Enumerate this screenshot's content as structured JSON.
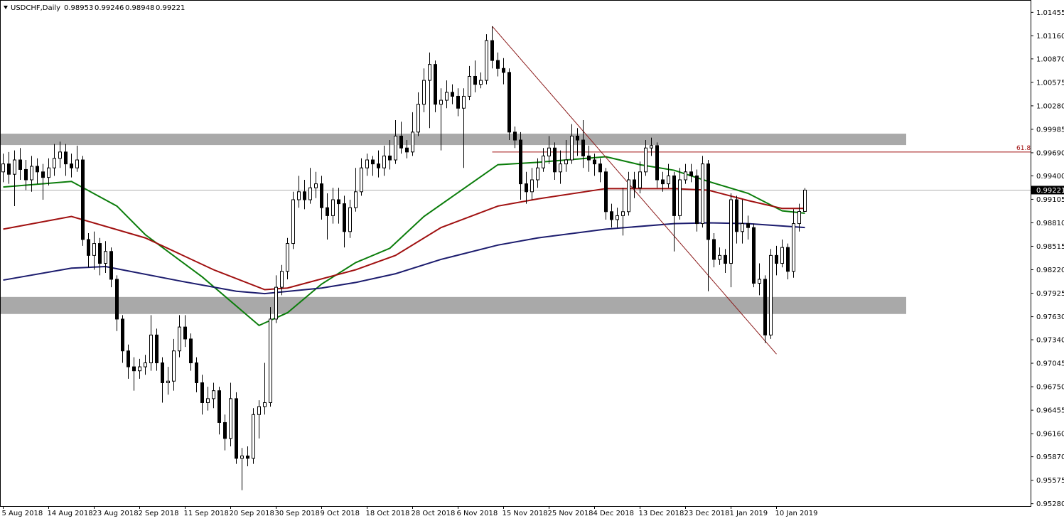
{
  "chart_data": {
    "type": "candlestick",
    "symbol": "USDCHF,Daily",
    "categories": [
      "5 Aug 2018",
      null,
      null,
      null,
      null,
      null,
      null,
      null,
      "14 Aug 2018",
      null,
      null,
      null,
      null,
      null,
      null,
      null,
      "23 Aug 2018",
      null,
      null,
      null,
      null,
      null,
      null,
      null,
      "2 Sep 2018",
      null,
      null,
      null,
      null,
      null,
      null,
      null,
      "11 Sep 2018",
      null,
      null,
      null,
      null,
      null,
      null,
      null,
      "20 Sep 2018",
      null,
      null,
      null,
      null,
      null,
      null,
      null,
      "30 Sep 2018",
      null,
      null,
      null,
      null,
      null,
      null,
      null,
      "9 Oct 2018",
      null,
      null,
      null,
      null,
      null,
      null,
      null,
      "18 Oct 2018",
      null,
      null,
      null,
      null,
      null,
      null,
      null,
      "28 Oct 2018",
      null,
      null,
      null,
      null,
      null,
      null,
      null,
      "6 Nov 2018",
      null,
      null,
      null,
      null,
      null,
      null,
      null,
      "15 Nov 2018",
      null,
      null,
      null,
      null,
      null,
      null,
      null,
      "25 Nov 2018",
      null,
      null,
      null,
      null,
      null,
      null,
      null,
      "4 Dec 2018",
      null,
      null,
      null,
      null,
      null,
      null,
      null,
      "13 Dec 2018",
      null,
      null,
      null,
      null,
      null,
      null,
      null,
      "23 Dec 2018",
      null,
      null,
      null,
      null,
      null,
      null,
      null,
      "1 Jan 2019",
      null,
      null,
      null,
      null,
      null,
      null,
      null,
      "10 Jan 2019",
      null,
      null,
      null,
      null,
      null
    ],
    "open": [
      0.9945,
      0.9955,
      0.9942,
      0.996,
      0.9948,
      0.9935,
      0.9952,
      0.9945,
      0.9938,
      0.995,
      0.9962,
      0.997,
      0.9955,
      0.995,
      0.996,
      0.986,
      0.984,
      0.9855,
      0.983,
      0.9845,
      0.981,
      0.976,
      0.972,
      0.97,
      0.9695,
      0.97,
      0.9705,
      0.974,
      0.9705,
      0.968,
      0.9682,
      0.972,
      0.975,
      0.9735,
      0.9705,
      0.968,
      0.9655,
      0.966,
      0.967,
      0.963,
      0.961,
      0.966,
      0.9585,
      0.9588,
      0.9585,
      0.964,
      0.965,
      0.9655,
      0.976,
      0.98,
      0.982,
      0.9855,
      0.991,
      0.992,
      0.991,
      0.9925,
      0.993,
      0.99,
      0.989,
      0.991,
      0.9905,
      0.987,
      0.99,
      0.992,
      0.995,
      0.996,
      0.9955,
      0.995,
      0.9965,
      0.996,
      0.999,
      0.9975,
      0.997,
      0.9995,
      1.003,
      1.006,
      1.008,
      1.003,
      1.0035,
      1.0045,
      1.004,
      1.0025,
      1.004,
      1.0065,
      1.0055,
      1.006,
      1.011,
      1.0085,
      1.0075,
      1.007,
      0.9995,
      0.9985,
      0.993,
      0.992,
      0.9935,
      0.995,
      0.9965,
      0.9975,
      0.9945,
      0.9955,
      0.996,
      0.999,
      0.9985,
      0.9965,
      0.996,
      0.9955,
      0.9945,
      0.9895,
      0.9885,
      0.989,
      0.9895,
      0.9935,
      0.9925,
      0.9945,
      0.9975,
      0.9978,
      0.9935,
      0.993,
      0.994,
      0.989,
      0.9935,
      0.9945,
      0.994,
      0.988,
      0.9955,
      0.986,
      0.9835,
      0.984,
      0.983,
      0.991,
      0.987,
      0.988,
      0.9875,
      0.9805,
      0.981,
      0.974,
      0.984,
      0.983,
      0.985,
      0.982,
      0.988,
      0.98953
    ],
    "high": [
      0.9968,
      0.997,
      0.9972,
      0.9975,
      0.996,
      0.9965,
      0.9962,
      0.9955,
      0.9962,
      0.998,
      0.9983,
      0.998,
      0.9968,
      0.9978,
      0.9965,
      0.9868,
      0.987,
      0.9862,
      0.9858,
      0.985,
      0.9815,
      0.9765,
      0.9728,
      0.9712,
      0.971,
      0.9715,
      0.9765,
      0.9748,
      0.9712,
      0.97,
      0.9735,
      0.9765,
      0.9765,
      0.9742,
      0.9712,
      0.969,
      0.9675,
      0.968,
      0.9675,
      0.964,
      0.968,
      0.9668,
      0.9598,
      0.96,
      0.9648,
      0.9658,
      0.9705,
      0.9775,
      0.9815,
      0.9828,
      0.9862,
      0.992,
      0.994,
      0.9935,
      0.995,
      0.9945,
      0.994,
      0.9918,
      0.9925,
      0.9925,
      0.9915,
      0.991,
      0.995,
      0.9962,
      0.9968,
      0.9965,
      0.9972,
      0.9978,
      0.9985,
      1.001,
      1.0008,
      0.9985,
      1.002,
      1.0045,
      1.0075,
      1.0095,
      1.0085,
      1.005,
      1.006,
      1.0055,
      1.005,
      1.005,
      1.0078,
      1.0085,
      1.007,
      1.0118,
      1.0128,
      1.0095,
      1.0088,
      1.0075,
      1.0002,
      0.9995,
      0.9945,
      0.995,
      0.9962,
      0.9975,
      0.999,
      0.9982,
      0.9972,
      0.9985,
      1.0005,
      1.0,
      1.001,
      0.9978,
      0.9968,
      0.9962,
      0.995,
      0.9905,
      0.99,
      0.9925,
      0.9945,
      0.9945,
      0.9958,
      0.9985,
      0.9988,
      0.9982,
      0.9945,
      0.9955,
      0.9945,
      0.995,
      0.9955,
      0.9955,
      0.9948,
      0.9965,
      0.996,
      0.9868,
      0.985,
      0.9848,
      0.9918,
      0.9915,
      0.991,
      0.989,
      0.988,
      0.983,
      0.9815,
      0.9848,
      0.9852,
      0.986,
      0.9855,
      0.9898,
      0.9905,
      0.99246
    ],
    "low": [
      0.9932,
      0.993,
      0.9902,
      0.9935,
      0.9922,
      0.992,
      0.993,
      0.991,
      0.9928,
      0.994,
      0.995,
      0.994,
      0.9938,
      0.9945,
      0.9852,
      0.9825,
      0.9822,
      0.9815,
      0.9818,
      0.98,
      0.9745,
      0.9705,
      0.9685,
      0.967,
      0.9685,
      0.969,
      0.9695,
      0.9695,
      0.9655,
      0.9665,
      0.967,
      0.9712,
      0.9725,
      0.9695,
      0.9668,
      0.964,
      0.9645,
      0.9648,
      0.9615,
      0.9595,
      0.96,
      0.9578,
      0.9545,
      0.9575,
      0.9578,
      0.961,
      0.964,
      0.965,
      0.9755,
      0.979,
      0.981,
      0.9848,
      0.99,
      0.9898,
      0.9905,
      0.9912,
      0.9885,
      0.986,
      0.988,
      0.988,
      0.985,
      0.9862,
      0.9895,
      0.9915,
      0.994,
      0.994,
      0.9938,
      0.994,
      0.9948,
      0.9955,
      0.9968,
      0.9962,
      0.9965,
      0.999,
      1.002,
      1.0,
      1.002,
      0.9972,
      1.0025,
      1.003,
      1.0015,
      0.995,
      1.0035,
      1.0045,
      1.005,
      1.0055,
      1.0075,
      1.0065,
      1.0055,
      0.9985,
      0.9975,
      0.991,
      0.9905,
      0.991,
      0.9925,
      0.9945,
      0.9955,
      0.9935,
      0.993,
      0.9945,
      0.9955,
      0.9965,
      0.995,
      0.9945,
      0.994,
      0.9932,
      0.9885,
      0.9875,
      0.9875,
      0.9865,
      0.989,
      0.9912,
      0.9918,
      0.994,
      0.9965,
      0.9925,
      0.992,
      0.9925,
      0.9845,
      0.9885,
      0.993,
      0.9932,
      0.987,
      0.9875,
      0.9795,
      0.9825,
      0.9828,
      0.9818,
      0.98,
      0.9855,
      0.9855,
      0.986,
      0.98,
      0.979,
      0.973,
      0.9735,
      0.9815,
      0.9825,
      0.981,
      0.9812,
      0.987,
      0.98948
    ],
    "close": [
      0.9955,
      0.9942,
      0.996,
      0.9948,
      0.9935,
      0.9952,
      0.9945,
      0.9938,
      0.995,
      0.9962,
      0.997,
      0.9955,
      0.995,
      0.996,
      0.986,
      0.984,
      0.9855,
      0.983,
      0.9845,
      0.981,
      0.976,
      0.972,
      0.97,
      0.9695,
      0.97,
      0.9705,
      0.974,
      0.9705,
      0.968,
      0.9682,
      0.972,
      0.975,
      0.9735,
      0.9705,
      0.968,
      0.9655,
      0.966,
      0.967,
      0.963,
      0.961,
      0.966,
      0.9585,
      0.9588,
      0.9585,
      0.964,
      0.965,
      0.9655,
      0.976,
      0.98,
      0.982,
      0.9855,
      0.991,
      0.992,
      0.991,
      0.9925,
      0.993,
      0.99,
      0.989,
      0.991,
      0.9905,
      0.987,
      0.99,
      0.992,
      0.995,
      0.996,
      0.9955,
      0.995,
      0.9965,
      0.996,
      0.999,
      0.9975,
      0.997,
      0.9995,
      1.003,
      1.006,
      1.008,
      1.003,
      1.0035,
      1.0045,
      1.004,
      1.0025,
      1.004,
      1.0065,
      1.0055,
      1.006,
      1.011,
      1.0085,
      1.0075,
      1.007,
      0.9995,
      0.9985,
      0.993,
      0.992,
      0.9935,
      0.995,
      0.9965,
      0.9975,
      0.9945,
      0.9955,
      0.996,
      0.999,
      0.9985,
      0.9965,
      0.996,
      0.9955,
      0.9945,
      0.9895,
      0.9885,
      0.989,
      0.9895,
      0.9935,
      0.9925,
      0.9945,
      0.9975,
      0.9978,
      0.9935,
      0.993,
      0.994,
      0.989,
      0.9935,
      0.9945,
      0.994,
      0.988,
      0.9955,
      0.986,
      0.9835,
      0.984,
      0.983,
      0.991,
      0.987,
      0.988,
      0.9875,
      0.9805,
      0.981,
      0.974,
      0.984,
      0.983,
      0.985,
      0.982,
      0.988,
      0.98953,
      0.99221
    ],
    "bull_color": "#ffffff",
    "bear_color": "#000000",
    "ylim": [
      0.9525,
      1.0161
    ],
    "yticks": [
      1.01455,
      {
        "value": 1.0116,
        "label": "1.01160"
      },
      {
        "value": 1.0087,
        "label": "1.00870"
      },
      1.00575,
      {
        "value": 1.0028,
        "label": "1.00280"
      },
      0.99985,
      {
        "value": 0.9969,
        "label": "0.99690"
      },
      {
        "value": 0.994,
        "label": "0.99400"
      },
      0.99105,
      {
        "value": 0.9881,
        "label": "0.98810"
      },
      0.98515,
      {
        "value": 0.9822,
        "label": "0.98220"
      },
      0.97925,
      {
        "value": 0.9763,
        "label": "0.97630"
      },
      {
        "value": 0.9734,
        "label": "0.97340"
      },
      0.97045,
      {
        "value": 0.9675,
        "label": "0.96750"
      },
      0.96455,
      {
        "value": 0.9616,
        "label": "0.96160"
      },
      {
        "value": 0.9587,
        "label": "0.95870"
      },
      0.95575,
      {
        "value": 0.9528,
        "label": "0.95280"
      }
    ],
    "moving_averages": [
      {
        "color": "#0b7d0b",
        "x": [
          0,
          12,
          20,
          25,
          35,
          45,
          50,
          56,
          62,
          68,
          74,
          81,
          87,
          94,
          106,
          112,
          118,
          124,
          131,
          137,
          141
        ],
        "values": [
          0.9926,
          0.9933,
          0.9902,
          0.9866,
          0.9813,
          0.9752,
          0.9768,
          0.9804,
          0.9831,
          0.9849,
          0.9889,
          0.9924,
          0.9954,
          0.9957,
          0.9964,
          0.9954,
          0.9947,
          0.9933,
          0.9918,
          0.9896,
          0.9893
        ]
      },
      {
        "color": "#a01010",
        "x": [
          0,
          12,
          25,
          37,
          46,
          50,
          62,
          69,
          77,
          87,
          94,
          106,
          118,
          124,
          131,
          137,
          141
        ],
        "values": [
          0.9873,
          0.9889,
          0.9862,
          0.9822,
          0.9797,
          0.9799,
          0.9822,
          0.984,
          0.9875,
          0.9902,
          0.9911,
          0.9924,
          0.9924,
          0.9922,
          0.9909,
          0.9899,
          0.9899
        ]
      },
      {
        "color": "#1c1c6e",
        "x": [
          0,
          12,
          18,
          31,
          41,
          46,
          56,
          62,
          69,
          77,
          87,
          94,
          106,
          118,
          124,
          131,
          141
        ],
        "values": [
          0.9809,
          0.9824,
          0.9826,
          0.9808,
          0.9795,
          0.9792,
          0.9799,
          0.9806,
          0.9817,
          0.9835,
          0.9853,
          0.9862,
          0.9873,
          0.988,
          0.9881,
          0.988,
          0.9875
        ]
      }
    ],
    "zones": [
      {
        "top": 0.9993,
        "bottom": 0.99787
      },
      {
        "top": 0.97878,
        "bottom": 0.97664
      }
    ],
    "zone_color": "#a9a9a9",
    "trendline": {
      "color": "#8b1a1a",
      "x": [
        86,
        136
      ],
      "values": [
        1.0128,
        0.9716
      ]
    },
    "fib": {
      "level": 61.8,
      "price": 0.997,
      "color": "#a01010"
    }
  }
}
